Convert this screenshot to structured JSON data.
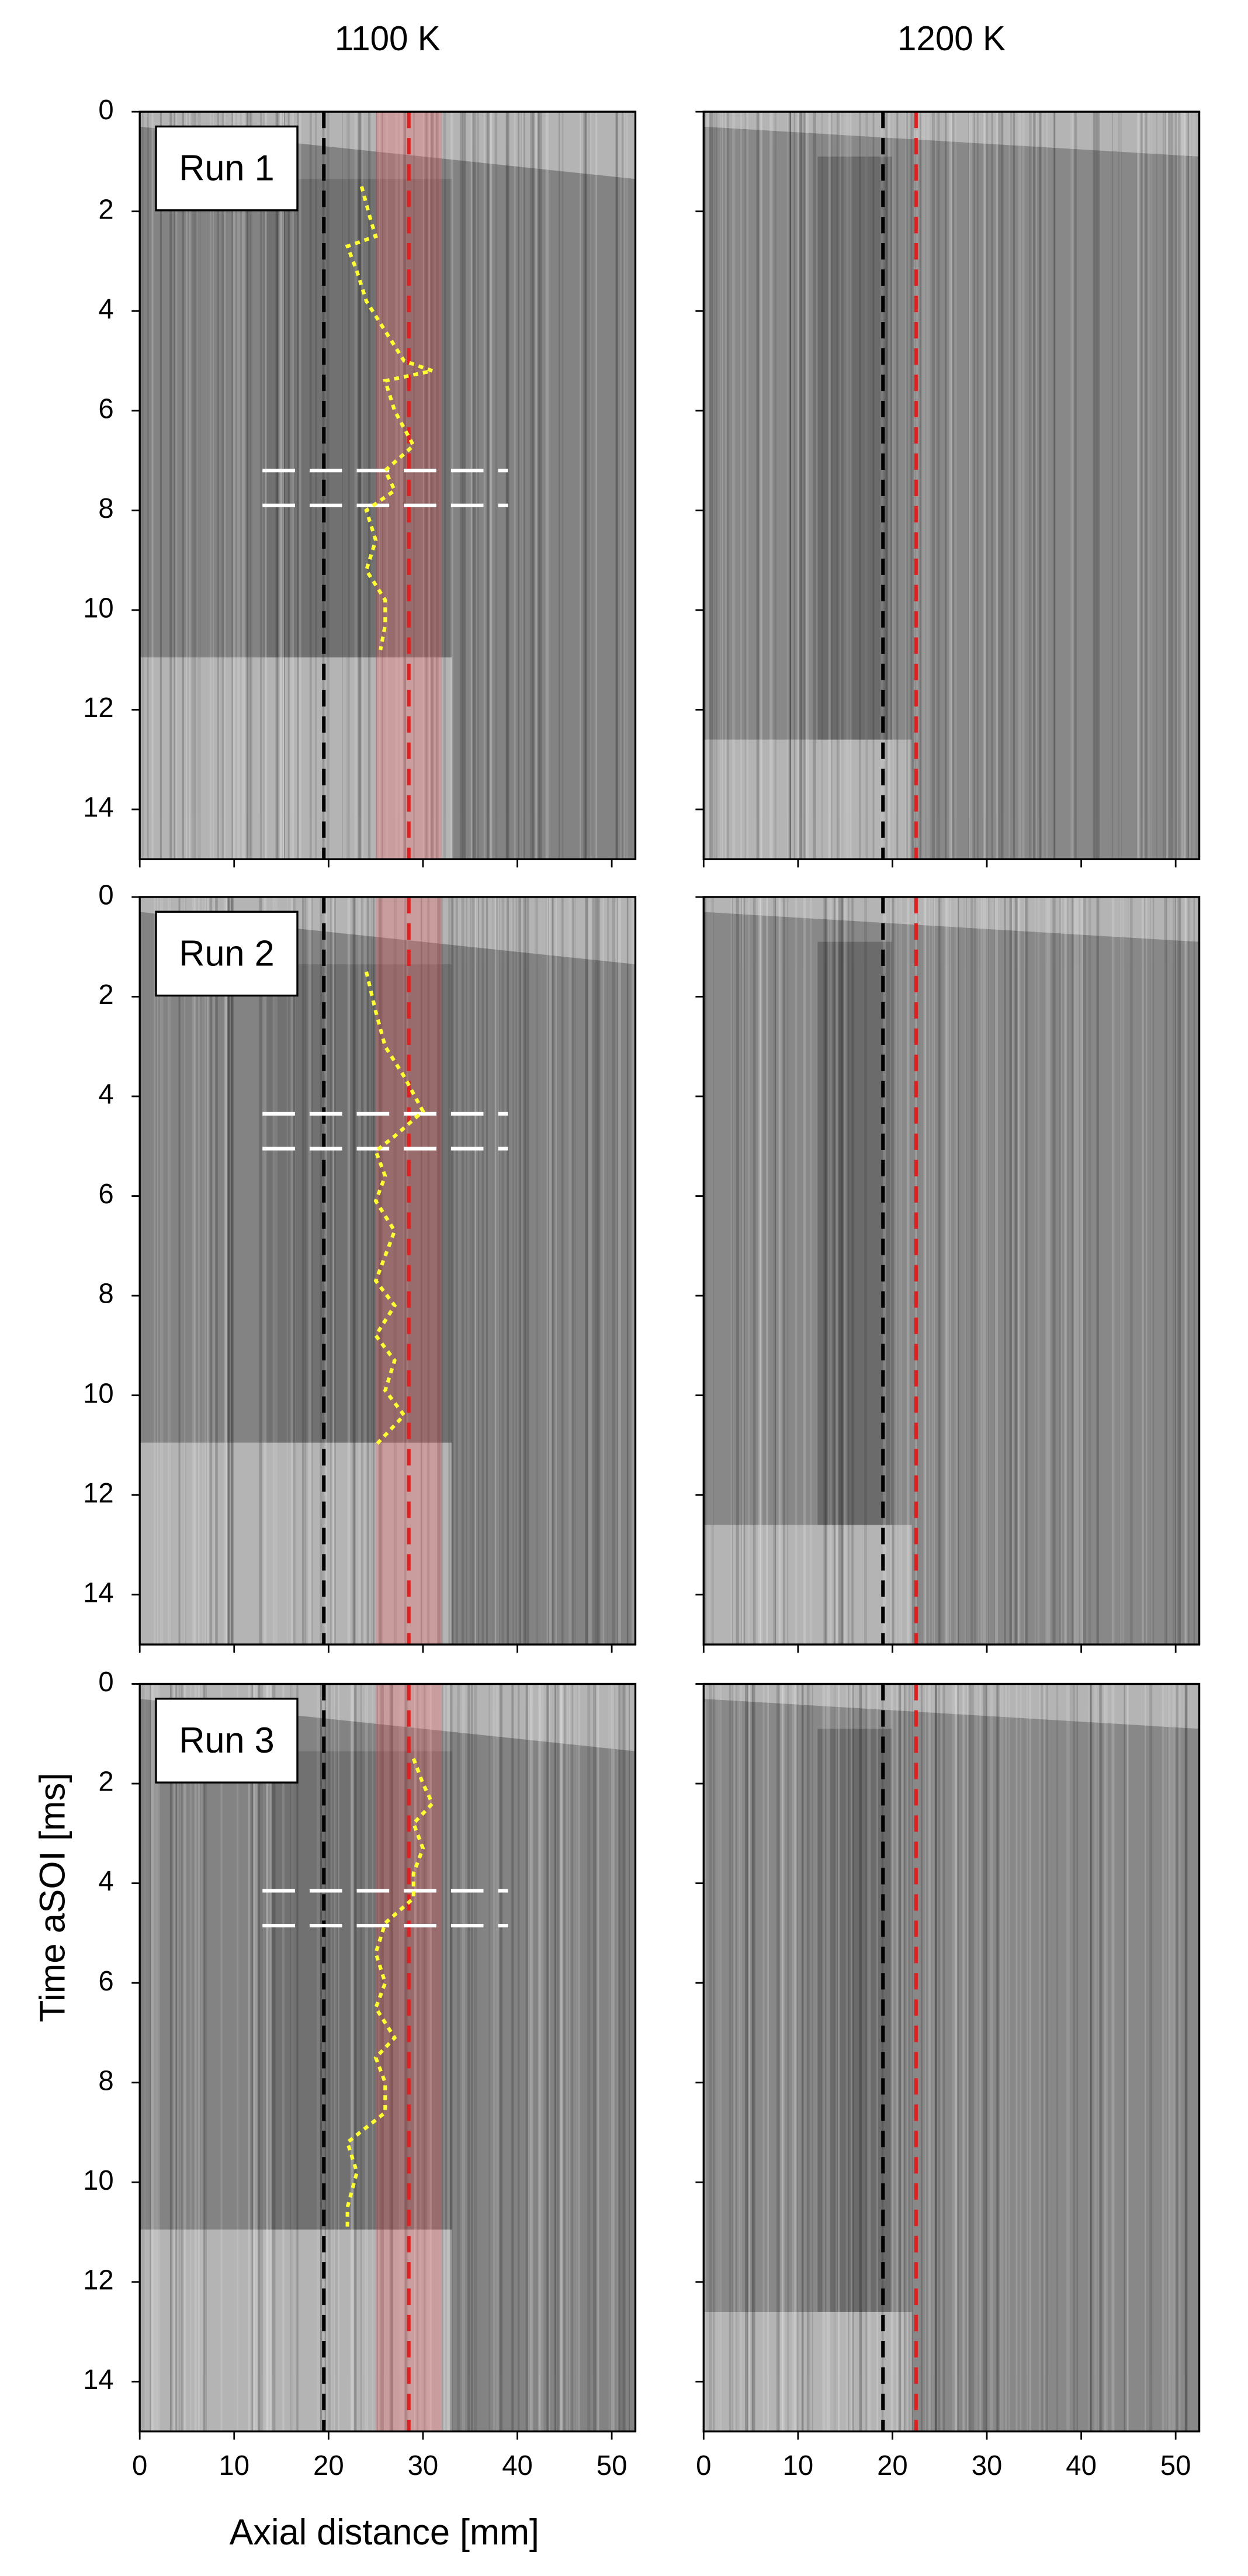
{
  "chart_data": [
    {
      "type": "image",
      "title": "1100 K",
      "annotation": "Run 1",
      "xlim": [
        0,
        52.5
      ],
      "ylim": [
        0,
        15
      ],
      "y_inverted": true,
      "xticks": [
        0,
        10,
        20,
        30,
        40,
        50
      ],
      "yticks": [
        0,
        2,
        4,
        6,
        8,
        10,
        12,
        14
      ],
      "xtick_labels": false,
      "ytick_labels": true,
      "vlines": [
        {
          "x": 19.5,
          "color": "#000000"
        },
        {
          "x": 28.5,
          "color": "#e02020"
        }
      ],
      "band": {
        "x": [
          25,
          32
        ],
        "color": "#ff6060"
      },
      "hlines": {
        "y": [
          7.2,
          7.9
        ],
        "x": [
          13,
          39
        ],
        "color": "#ffffff"
      },
      "curve": {
        "color": "#ffff33",
        "x": [
          23.5,
          24.5,
          25,
          22,
          23,
          24,
          26,
          28,
          31,
          26,
          27,
          29,
          26,
          27,
          24,
          25,
          24,
          26,
          26,
          25.5
        ],
        "y": [
          1.5,
          2.2,
          2.5,
          2.7,
          3.2,
          3.8,
          4.4,
          5.0,
          5.2,
          5.4,
          6.0,
          6.7,
          7.2,
          7.6,
          8.0,
          8.6,
          9.2,
          9.8,
          10.3,
          10.8
        ]
      }
    },
    {
      "type": "image",
      "title": "1200 K",
      "xlim": [
        0,
        52.5
      ],
      "ylim": [
        0,
        15
      ],
      "y_inverted": true,
      "xticks": [
        0,
        10,
        20,
        30,
        40,
        50
      ],
      "yticks": [
        0,
        2,
        4,
        6,
        8,
        10,
        12,
        14
      ],
      "xtick_labels": false,
      "ytick_labels": false,
      "vlines": [
        {
          "x": 19,
          "color": "#000000"
        },
        {
          "x": 22.5,
          "color": "#e02020"
        }
      ]
    },
    {
      "type": "image",
      "annotation": "Run 2",
      "xlim": [
        0,
        52.5
      ],
      "ylim": [
        0,
        15
      ],
      "y_inverted": true,
      "xticks": [
        0,
        10,
        20,
        30,
        40,
        50
      ],
      "yticks": [
        0,
        2,
        4,
        6,
        8,
        10,
        12,
        14
      ],
      "xtick_labels": false,
      "ytick_labels": true,
      "vlines": [
        {
          "x": 19.5,
          "color": "#000000"
        },
        {
          "x": 28.5,
          "color": "#e02020"
        }
      ],
      "band": {
        "x": [
          25,
          32
        ],
        "color": "#ff6060"
      },
      "hlines": {
        "y": [
          4.35,
          5.05
        ],
        "x": [
          13,
          39
        ],
        "color": "#ffffff"
      },
      "curve": {
        "color": "#ffff33",
        "x": [
          24,
          25,
          26,
          28,
          30,
          27,
          25,
          26,
          25,
          27,
          26,
          25,
          27,
          25,
          27,
          26,
          28,
          25
        ],
        "y": [
          1.5,
          2.3,
          3.0,
          3.6,
          4.3,
          4.8,
          5.1,
          5.6,
          6.1,
          6.7,
          7.2,
          7.7,
          8.2,
          8.8,
          9.3,
          9.9,
          10.4,
          11.0
        ]
      }
    },
    {
      "type": "image",
      "xlim": [
        0,
        52.5
      ],
      "ylim": [
        0,
        15
      ],
      "y_inverted": true,
      "xticks": [
        0,
        10,
        20,
        30,
        40,
        50
      ],
      "yticks": [
        0,
        2,
        4,
        6,
        8,
        10,
        12,
        14
      ],
      "xtick_labels": false,
      "ytick_labels": false,
      "vlines": [
        {
          "x": 19,
          "color": "#000000"
        },
        {
          "x": 22.5,
          "color": "#e02020"
        }
      ]
    },
    {
      "type": "image",
      "annotation": "Run 3",
      "xlabel": "Axial distance [mm]",
      "ylabel": "Time aSOI [ms]",
      "xlim": [
        0,
        52.5
      ],
      "ylim": [
        0,
        15
      ],
      "y_inverted": true,
      "xticks": [
        0,
        10,
        20,
        30,
        40,
        50
      ],
      "yticks": [
        0,
        2,
        4,
        6,
        8,
        10,
        12,
        14
      ],
      "xtick_labels": true,
      "ytick_labels": true,
      "vlines": [
        {
          "x": 19.5,
          "color": "#000000"
        },
        {
          "x": 28.5,
          "color": "#e02020"
        }
      ],
      "band": {
        "x": [
          25,
          32
        ],
        "color": "#ff6060"
      },
      "hlines": {
        "y": [
          4.15,
          4.85
        ],
        "x": [
          13,
          39
        ],
        "color": "#ffffff"
      },
      "curve": {
        "color": "#ffff33",
        "x": [
          29,
          30,
          31,
          29,
          30,
          29,
          29,
          26,
          25,
          26,
          25,
          27,
          25,
          26,
          26,
          22,
          23,
          22,
          22
        ],
        "y": [
          1.5,
          2.0,
          2.4,
          2.8,
          3.3,
          3.8,
          4.3,
          4.8,
          5.4,
          6.0,
          6.5,
          7.1,
          7.5,
          8.0,
          8.6,
          9.2,
          9.8,
          10.5,
          10.9
        ]
      }
    },
    {
      "type": "image",
      "xlim": [
        0,
        52.5
      ],
      "ylim": [
        0,
        15
      ],
      "y_inverted": true,
      "xticks": [
        0,
        10,
        20,
        30,
        40,
        50
      ],
      "yticks": [
        0,
        2,
        4,
        6,
        8,
        10,
        12,
        14
      ],
      "xtick_labels": true,
      "ytick_labels": false,
      "vlines": [
        {
          "x": 19,
          "color": "#000000"
        },
        {
          "x": 22.5,
          "color": "#e02020"
        }
      ]
    }
  ]
}
